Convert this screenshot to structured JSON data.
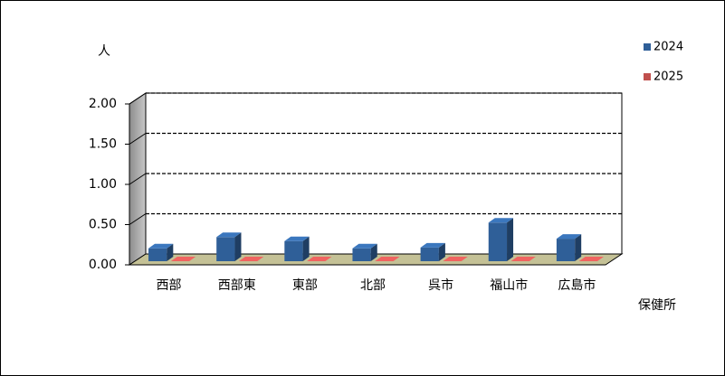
{
  "chart_data": {
    "type": "bar3d",
    "y_label": "人",
    "x_label": "保健所",
    "categories": [
      "西部",
      "西部東",
      "東部",
      "北部",
      "呉市",
      "福山市",
      "広島市"
    ],
    "series": [
      {
        "name": "2024",
        "color": "#2f5f98",
        "values": [
          0.16,
          0.3,
          0.25,
          0.16,
          0.17,
          0.48,
          0.28
        ]
      },
      {
        "name": "2025",
        "color": "#c0504d",
        "values": [
          0,
          0,
          0,
          0,
          0,
          0,
          0
        ]
      }
    ],
    "ylim": [
      0,
      2
    ],
    "yticks": [
      {
        "value": 0,
        "label": "0.00"
      },
      {
        "value": 0.5,
        "label": "0.50"
      },
      {
        "value": 1,
        "label": "1.00"
      },
      {
        "value": 1.5,
        "label": "1.50"
      },
      {
        "value": 2,
        "label": "2.00"
      }
    ],
    "grid": true
  }
}
